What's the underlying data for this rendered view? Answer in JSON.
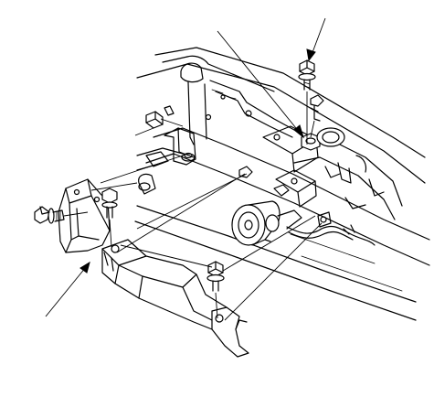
{
  "figure": {
    "background": "#ffffff",
    "line_color": "#000000",
    "components": [
      "vehicle-frame",
      "horn",
      "radiator-support-bracket",
      "splash-shield",
      "side-splash-shield",
      "mounting-bolt",
      "flange-bolt",
      "clip-fastener",
      "nut",
      "wire-harness"
    ],
    "callouts": [
      "arrow-top-right",
      "arrow-top-center",
      "arrow-bottom-left"
    ]
  }
}
